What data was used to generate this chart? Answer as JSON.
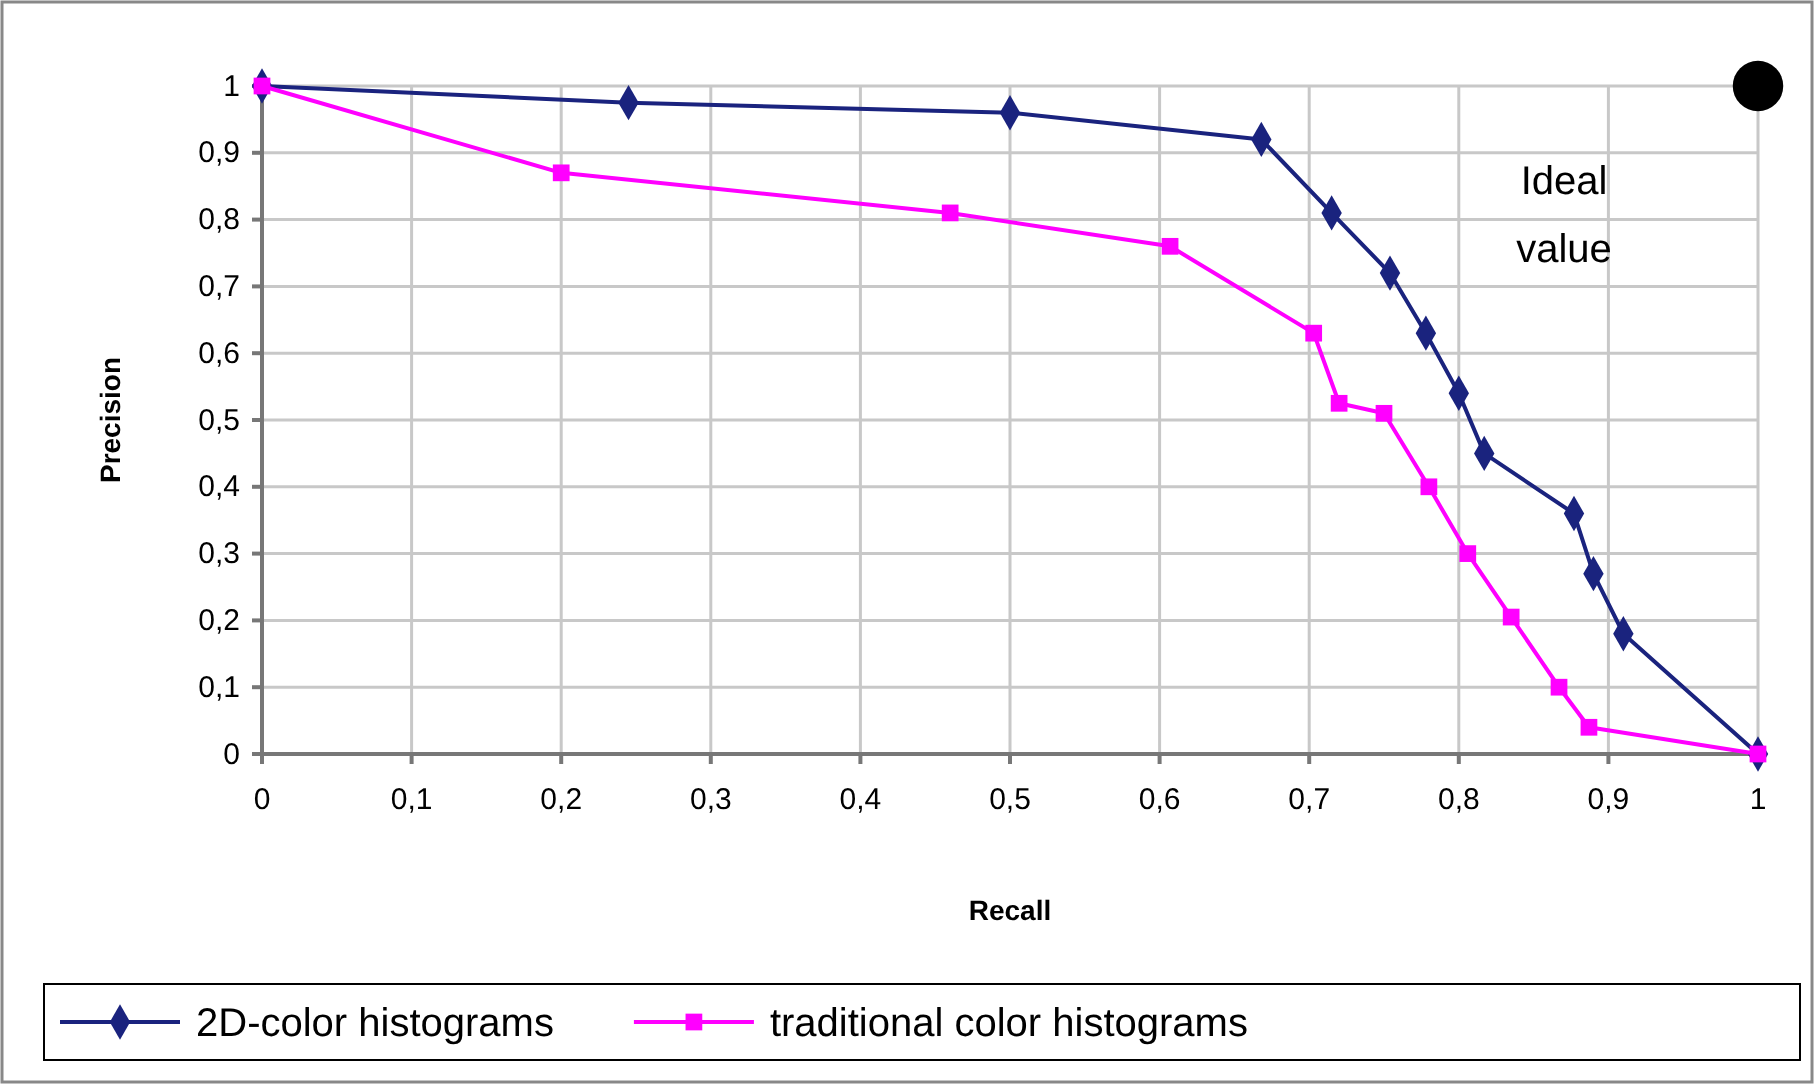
{
  "chart_data": {
    "type": "line",
    "xlabel": "Recall",
    "ylabel": "Precision",
    "xlim": [
      0,
      1
    ],
    "ylim": [
      0,
      1
    ],
    "xticks": [
      0,
      {
        "value": 0.1,
        "label": "0,1"
      },
      {
        "value": 0.2,
        "label": "0,2"
      },
      {
        "value": 0.3,
        "label": "0,3"
      },
      {
        "value": 0.4,
        "label": "0,4"
      },
      {
        "value": 0.5,
        "label": "0,5"
      },
      {
        "value": 0.6,
        "label": "0,6"
      },
      {
        "value": 0.7,
        "label": "0,7"
      },
      {
        "value": 0.8,
        "label": "0,8"
      },
      {
        "value": 0.9,
        "label": "0,9"
      },
      1
    ],
    "yticks": [
      0,
      {
        "value": 0.1,
        "label": "0,1"
      },
      {
        "value": 0.2,
        "label": "0,2"
      },
      {
        "value": 0.3,
        "label": "0,3"
      },
      {
        "value": 0.4,
        "label": "0,4"
      },
      {
        "value": 0.5,
        "label": "0,5"
      },
      {
        "value": 0.6,
        "label": "0,6"
      },
      {
        "value": 0.7,
        "label": "0,7"
      },
      {
        "value": 0.8,
        "label": "0,8"
      },
      {
        "value": 0.9,
        "label": "0,9"
      },
      1
    ],
    "grid": true,
    "legend": "bottom",
    "line_style": "solid",
    "series": [
      {
        "name": "2D-color histograms",
        "color": "#1a237e",
        "marker": "diamond",
        "x": [
          0,
          0.245,
          0.5,
          0.668,
          0.715,
          0.754,
          0.778,
          0.8,
          0.817,
          0.877,
          0.89,
          0.91,
          1
        ],
        "values": [
          1,
          0.975,
          0.96,
          0.92,
          0.81,
          0.72,
          0.63,
          0.54,
          0.45,
          0.36,
          0.27,
          0.18,
          0
        ]
      },
      {
        "name": "traditional color histograms",
        "color": "#ff00ff",
        "marker": "square",
        "x": [
          0,
          0.2,
          0.46,
          0.607,
          0.703,
          0.72,
          0.75,
          0.78,
          0.806,
          0.835,
          0.867,
          0.887,
          1
        ],
        "values": [
          1,
          0.87,
          0.81,
          0.76,
          0.63,
          0.525,
          0.51,
          0.4,
          0.3,
          0.205,
          0.1,
          0.04,
          0
        ]
      },
      {
        "type": "scatter",
        "color": "#000000",
        "marker": "circle",
        "x": [
          1
        ],
        "values": [
          1
        ]
      }
    ],
    "annotations": [
      "Ideal value"
    ]
  }
}
